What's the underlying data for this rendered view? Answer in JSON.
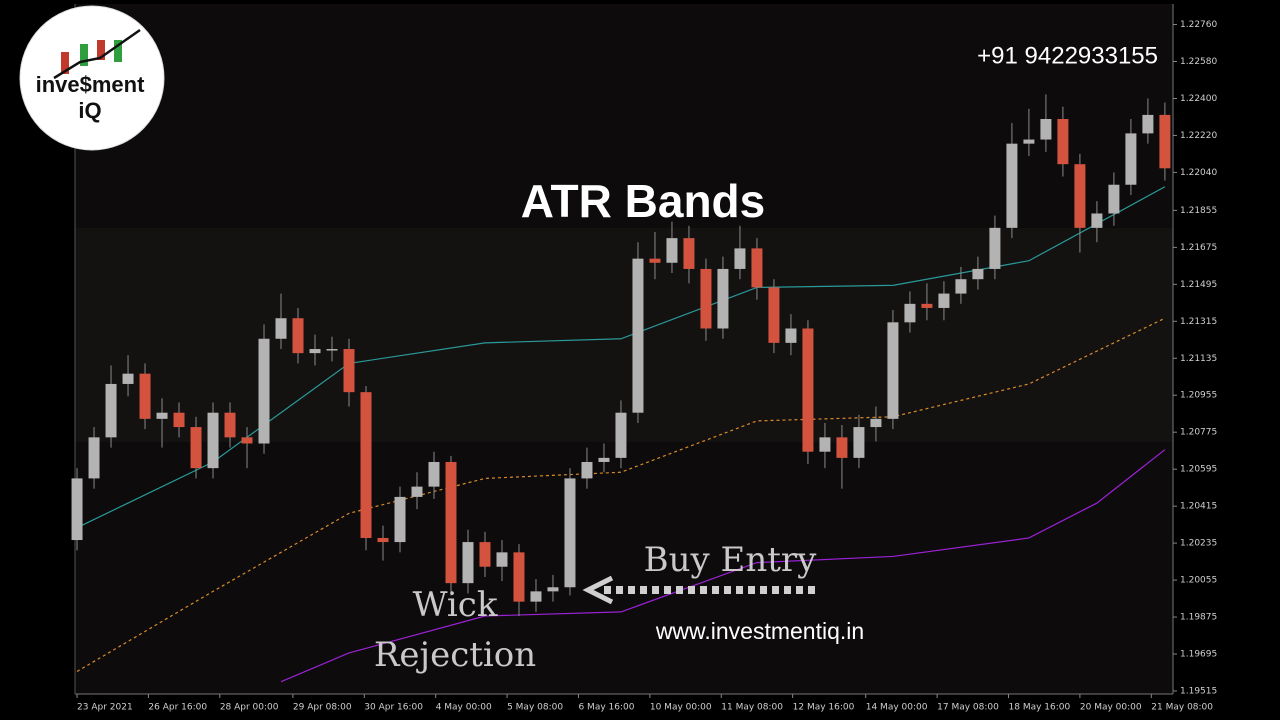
{
  "chart_data": {
    "type": "candlestick",
    "title": "ATR Bands",
    "phone": "+91  9422933155",
    "website": "www.investmentiq.in",
    "logo": {
      "line1": "inve$ment",
      "line2": "iQ"
    },
    "annotations": {
      "buy": "Buy Entry",
      "wick1": "Wick",
      "wick2": "Rejection"
    },
    "up_color": "#b3b3b3",
    "down_color": "#d4533f",
    "open": [
      1.2025,
      1.2055,
      1.2075,
      1.2101,
      1.2106,
      1.2084,
      1.2087,
      1.208,
      1.206,
      1.2087,
      1.2075,
      1.2072,
      1.2123,
      1.2133,
      1.2116,
      1.2118,
      1.2118,
      1.2097,
      1.2026,
      1.2024,
      1.2046,
      1.2051,
      1.2063,
      1.2004,
      1.2024,
      1.2012,
      1.2019,
      1.1995,
      1.2,
      1.2002,
      1.2055,
      1.2063,
      1.2065,
      1.2087,
      1.2162,
      1.216,
      1.2172,
      1.2157,
      1.2128,
      1.2157,
      1.2167,
      1.2148,
      1.2121,
      1.2128,
      1.2068,
      1.2075,
      1.2065,
      1.208,
      1.2084,
      1.2131,
      1.214,
      1.2138,
      1.2145,
      1.2152,
      1.2157,
      1.2177,
      1.2218,
      1.222,
      1.223,
      1.2208,
      1.2177,
      1.2184,
      1.2198,
      1.2223,
      1.2232
    ],
    "high": [
      1.206,
      1.208,
      1.211,
      1.2115,
      1.2111,
      1.2094,
      1.2092,
      1.2085,
      1.2092,
      1.2092,
      1.208,
      1.213,
      1.2145,
      1.2138,
      1.2125,
      1.2124,
      1.2123,
      1.21,
      1.2032,
      1.2051,
      1.2058,
      1.2068,
      1.2066,
      1.203,
      1.2029,
      1.2025,
      1.2023,
      1.2006,
      1.2008,
      1.206,
      1.207,
      1.2072,
      1.2093,
      1.217,
      1.2175,
      1.218,
      1.2178,
      1.2162,
      1.2163,
      1.2178,
      1.2172,
      1.2152,
      1.2135,
      1.2132,
      1.2082,
      1.2081,
      1.2086,
      1.209,
      1.2137,
      1.2146,
      1.215,
      1.2151,
      1.2158,
      1.2163,
      1.2183,
      1.2228,
      1.2235,
      1.2242,
      1.2236,
      1.2213,
      1.219,
      1.2204,
      1.223,
      1.224,
      1.2238
    ],
    "low": [
      1.202,
      1.205,
      1.207,
      1.2095,
      1.2079,
      1.207,
      1.2075,
      1.2055,
      1.2055,
      1.207,
      1.206,
      1.2067,
      1.2118,
      1.2111,
      1.211,
      1.2112,
      1.209,
      1.202,
      1.2015,
      1.2019,
      1.204,
      1.2045,
      1.1998,
      1.1999,
      1.2007,
      1.2005,
      1.1988,
      1.199,
      1.1995,
      1.1998,
      1.205,
      1.2058,
      1.206,
      1.2082,
      1.2152,
      1.2155,
      1.215,
      1.2122,
      1.2123,
      1.2152,
      1.2142,
      1.2116,
      1.2115,
      1.2062,
      1.206,
      1.205,
      1.206,
      1.2073,
      1.2079,
      1.2126,
      1.2132,
      1.2132,
      1.214,
      1.2147,
      1.2152,
      1.2172,
      1.2212,
      1.2214,
      1.2202,
      1.2165,
      1.217,
      1.2178,
      1.2193,
      1.2218,
      1.22
    ],
    "close": [
      1.2055,
      1.2075,
      1.2101,
      1.2106,
      1.2084,
      1.2087,
      1.208,
      1.206,
      1.2087,
      1.2075,
      1.2072,
      1.2123,
      1.2133,
      1.2116,
      1.2118,
      1.2118,
      1.2097,
      1.2026,
      1.2024,
      1.2046,
      1.2051,
      1.2063,
      1.2004,
      1.2024,
      1.2012,
      1.2019,
      1.1995,
      1.2,
      1.2002,
      1.2055,
      1.2063,
      1.2065,
      1.2087,
      1.2162,
      1.216,
      1.2172,
      1.2157,
      1.2128,
      1.2157,
      1.2167,
      1.2148,
      1.2121,
      1.2128,
      1.2068,
      1.2075,
      1.2065,
      1.208,
      1.2084,
      1.2131,
      1.214,
      1.2138,
      1.2145,
      1.2152,
      1.2157,
      1.2177,
      1.2218,
      1.222,
      1.223,
      1.2208,
      1.2177,
      1.2184,
      1.2198,
      1.2223,
      1.2232,
      1.2206
    ],
    "lines": [
      {
        "color": "#2a9a9a",
        "dash": false,
        "x": [
          0,
          8,
          16,
          24,
          32,
          40,
          48,
          56,
          64
        ],
        "values": [
          1.2031,
          1.2063,
          1.2111,
          1.2121,
          1.2123,
          1.2148,
          1.2149,
          1.2161,
          1.2197
        ]
      },
      {
        "color": "#d98c2a",
        "dash": true,
        "x": [
          0,
          8,
          16,
          24,
          32,
          40,
          48,
          56,
          64
        ],
        "values": [
          1.1961,
          1.2,
          1.2038,
          1.2055,
          1.2058,
          1.2083,
          1.2085,
          1.2101,
          1.2133
        ]
      },
      {
        "color": "#9b22d6",
        "dash": false,
        "x": [
          12,
          16,
          24,
          32,
          40,
          48,
          56,
          60,
          64
        ],
        "values": [
          1.1956,
          1.197,
          1.1988,
          1.199,
          1.2014,
          1.2017,
          1.2026,
          1.2043,
          1.2069
        ]
      }
    ],
    "xlim": [
      -0.12,
      64.3
    ],
    "ylim": [
      1.1951,
      1.2286
    ],
    "yticks": [
      {
        "value": 1.2276,
        "label": "1.22760"
      },
      {
        "value": 1.2258,
        "label": "1.22580"
      },
      {
        "value": 1.224,
        "label": "1.22400"
      },
      {
        "value": 1.2222,
        "label": "1.22220"
      },
      {
        "value": 1.2204,
        "label": "1.22040"
      },
      1.21855,
      1.21675,
      1.21495,
      1.21315,
      1.21135,
      1.20955,
      1.20775,
      1.20595,
      1.20415,
      1.20235,
      1.20055,
      1.19875,
      1.19695,
      1.19515
    ],
    "xticks": [
      {
        "value": 0,
        "label": "23 Apr 2021"
      },
      {
        "value": 4.2,
        "label": "26 Apr 16:00"
      },
      {
        "value": 8.4,
        "label": "28 Apr 00:00"
      },
      {
        "value": 12.7,
        "label": "29 Apr 08:00"
      },
      {
        "value": 16.9,
        "label": "30 Apr 16:00"
      },
      {
        "value": 21.1,
        "label": "4 May 00:00"
      },
      {
        "value": 25.3,
        "label": "5 May 08:00"
      },
      {
        "value": 29.5,
        "label": "6 May 16:00"
      },
      {
        "value": 33.7,
        "label": "10 May 00:00"
      },
      {
        "value": 37.9,
        "label": "11 May 08:00"
      },
      {
        "value": 42.1,
        "label": "12 May 16:00"
      },
      {
        "value": 46.4,
        "label": "14 May 00:00"
      },
      {
        "value": 50.6,
        "label": "17 May 08:00"
      },
      {
        "value": 54.8,
        "label": "18 May 16:00"
      },
      {
        "value": 59,
        "label": "20 May 00:00"
      },
      {
        "value": 63.2,
        "label": "21 May 08:00"
      }
    ]
  }
}
